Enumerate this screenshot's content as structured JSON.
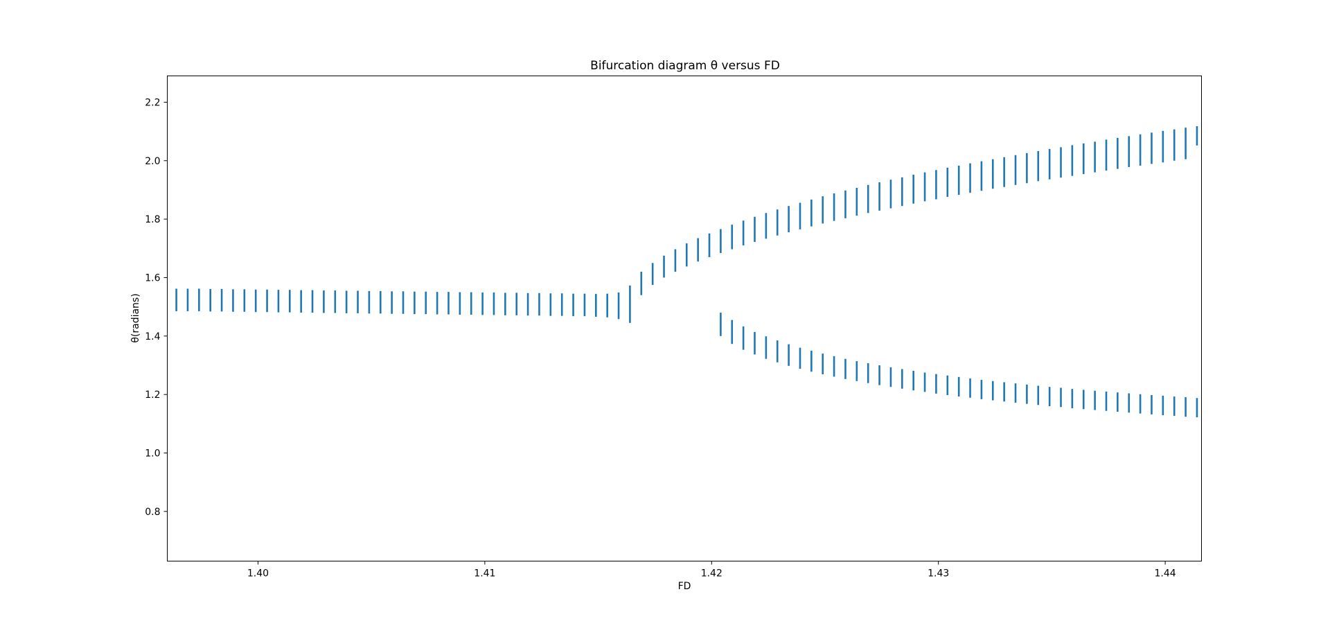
{
  "chart_data": {
    "type": "scatter",
    "title": "Bifurcation diagram  θ versus FD",
    "xlabel": "FD",
    "ylabel": "θ(radians)",
    "xlim": [
      1.396,
      1.4416
    ],
    "ylim": [
      0.63,
      2.29
    ],
    "xticks": [
      {
        "value": 1.4,
        "label": "1.40"
      },
      {
        "value": 1.41,
        "label": "1.41"
      },
      {
        "value": 1.42,
        "label": "1.42"
      },
      {
        "value": 1.43,
        "label": "1.43"
      },
      {
        "value": 1.44,
        "label": "1.44"
      }
    ],
    "yticks": [
      {
        "value": 0.8,
        "label": "0.8"
      },
      {
        "value": 1.0,
        "label": "1.0"
      },
      {
        "value": 1.2,
        "label": "1.2"
      },
      {
        "value": 1.4,
        "label": "1.4"
      },
      {
        "value": 1.6,
        "label": "1.6"
      },
      {
        "value": 1.8,
        "label": "1.8"
      },
      {
        "value": 2.0,
        "label": "2.0"
      },
      {
        "value": 2.2,
        "label": "2.2"
      }
    ],
    "marker": "vertical-line",
    "color": "#1f77b4",
    "grid": false,
    "x_start": 1.3964,
    "x_step": 0.0005,
    "bifurcation_x": 1.42,
    "series": [
      {
        "values": [
          [
            1.485,
            1.562
          ],
          [
            1.485,
            1.562
          ],
          [
            1.485,
            1.562
          ],
          [
            1.484,
            1.561
          ],
          [
            1.484,
            1.561
          ],
          [
            1.483,
            1.56
          ],
          [
            1.483,
            1.56
          ],
          [
            1.482,
            1.559
          ],
          [
            1.482,
            1.559
          ],
          [
            1.481,
            1.558
          ],
          [
            1.481,
            1.558
          ],
          [
            1.48,
            1.557
          ],
          [
            1.48,
            1.557
          ],
          [
            1.479,
            1.556
          ],
          [
            1.479,
            1.556
          ],
          [
            1.478,
            1.555
          ],
          [
            1.478,
            1.555
          ],
          [
            1.477,
            1.554
          ],
          [
            1.477,
            1.554
          ],
          [
            1.476,
            1.553
          ],
          [
            1.476,
            1.553
          ],
          [
            1.475,
            1.552
          ],
          [
            1.475,
            1.552
          ],
          [
            1.474,
            1.551
          ],
          [
            1.474,
            1.551
          ],
          [
            1.473,
            1.55
          ],
          [
            1.473,
            1.55
          ],
          [
            1.472,
            1.549
          ],
          [
            1.472,
            1.549
          ],
          [
            1.471,
            1.548
          ],
          [
            1.471,
            1.548
          ],
          [
            1.47,
            1.547
          ],
          [
            1.47,
            1.547
          ],
          [
            1.469,
            1.546
          ],
          [
            1.469,
            1.546
          ],
          [
            1.468,
            1.545
          ],
          [
            1.468,
            1.545
          ],
          [
            1.466,
            1.544
          ],
          [
            1.464,
            1.545
          ],
          [
            1.458,
            1.549
          ],
          [
            1.445,
            1.573
          ],
          [
            1.54,
            1.62
          ],
          [
            1.575,
            1.65
          ],
          [
            1.6,
            1.675
          ],
          [
            1.62,
            1.697
          ],
          [
            1.638,
            1.717
          ],
          [
            1.655,
            1.735
          ],
          [
            1.67,
            1.751
          ],
          [
            1.684,
            1.766
          ],
          [
            1.697,
            1.781
          ],
          [
            1.71,
            1.795
          ],
          [
            1.722,
            1.808
          ],
          [
            1.733,
            1.821
          ],
          [
            1.744,
            1.833
          ],
          [
            1.755,
            1.845
          ],
          [
            1.765,
            1.856
          ],
          [
            1.775,
            1.867
          ],
          [
            1.785,
            1.878
          ],
          [
            1.794,
            1.888
          ],
          [
            1.803,
            1.898
          ],
          [
            1.812,
            1.907
          ],
          [
            1.821,
            1.917
          ],
          [
            1.829,
            1.926
          ],
          [
            1.837,
            1.935
          ],
          [
            1.845,
            1.943
          ],
          [
            1.853,
            1.952
          ],
          [
            1.861,
            1.96
          ],
          [
            1.868,
            1.968
          ],
          [
            1.876,
            1.976
          ],
          [
            1.883,
            1.983
          ],
          [
            1.89,
            1.991
          ],
          [
            1.897,
            1.998
          ],
          [
            1.904,
            2.005
          ],
          [
            1.91,
            2.012
          ],
          [
            1.917,
            2.019
          ],
          [
            1.923,
            2.026
          ],
          [
            1.93,
            2.033
          ],
          [
            1.936,
            2.04
          ],
          [
            1.942,
            2.046
          ],
          [
            1.948,
            2.053
          ],
          [
            1.954,
            2.059
          ],
          [
            1.96,
            2.065
          ],
          [
            1.966,
            2.072
          ],
          [
            1.972,
            2.078
          ],
          [
            1.978,
            2.084
          ],
          [
            1.983,
            2.09
          ],
          [
            1.989,
            2.096
          ],
          [
            1.994,
            2.102
          ],
          [
            2.0,
            2.107
          ],
          [
            2.005,
            2.113
          ],
          [
            2.052,
            2.118
          ]
        ]
      },
      {
        "values": [
          [
            1.4,
            1.48
          ],
          [
            1.373,
            1.455
          ],
          [
            1.353,
            1.433
          ],
          [
            1.337,
            1.414
          ],
          [
            1.322,
            1.399
          ],
          [
            1.31,
            1.385
          ],
          [
            1.298,
            1.372
          ],
          [
            1.288,
            1.36
          ],
          [
            1.278,
            1.35
          ],
          [
            1.269,
            1.34
          ],
          [
            1.261,
            1.331
          ],
          [
            1.253,
            1.322
          ],
          [
            1.246,
            1.314
          ],
          [
            1.239,
            1.307
          ],
          [
            1.232,
            1.3
          ],
          [
            1.226,
            1.293
          ],
          [
            1.22,
            1.287
          ],
          [
            1.214,
            1.281
          ],
          [
            1.209,
            1.275
          ],
          [
            1.203,
            1.27
          ],
          [
            1.198,
            1.265
          ],
          [
            1.193,
            1.26
          ],
          [
            1.189,
            1.255
          ],
          [
            1.184,
            1.25
          ],
          [
            1.18,
            1.246
          ],
          [
            1.176,
            1.242
          ],
          [
            1.172,
            1.238
          ],
          [
            1.168,
            1.234
          ],
          [
            1.164,
            1.23
          ],
          [
            1.16,
            1.226
          ],
          [
            1.157,
            1.223
          ],
          [
            1.153,
            1.219
          ],
          [
            1.15,
            1.216
          ],
          [
            1.147,
            1.213
          ],
          [
            1.144,
            1.21
          ],
          [
            1.141,
            1.207
          ],
          [
            1.138,
            1.204
          ],
          [
            1.135,
            1.201
          ],
          [
            1.132,
            1.198
          ],
          [
            1.129,
            1.196
          ],
          [
            1.127,
            1.193
          ],
          [
            1.124,
            1.191
          ],
          [
            1.122,
            1.188
          ],
          [
            1.119,
            1.186
          ],
          [
            1.117,
            1.184
          ],
          [
            1.114,
            1.182
          ],
          [
            1.112,
            1.18
          ],
          [
            1.11,
            1.178
          ],
          [
            1.108,
            1.176
          ],
          [
            1.121,
            1.202
          ]
        ]
      }
    ]
  }
}
